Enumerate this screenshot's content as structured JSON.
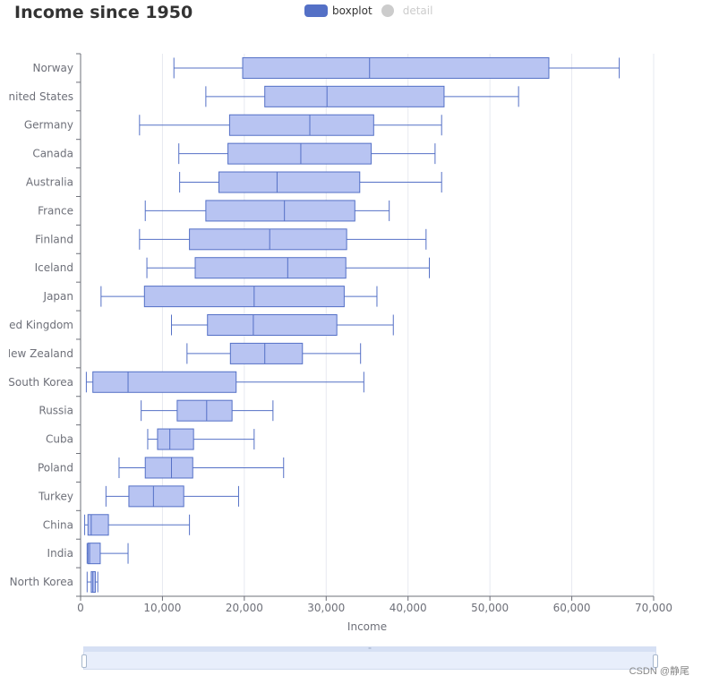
{
  "header": {
    "title": "Income since 1950"
  },
  "legend": {
    "items": [
      {
        "label": "boxplot",
        "color": "#5470c6",
        "active": true
      },
      {
        "label": "detail",
        "color": "#cccccc",
        "active": false
      }
    ]
  },
  "chart_data": {
    "type": "boxplot",
    "orientation": "horizontal",
    "xlabel": "Income",
    "xlim": [
      0,
      70000
    ],
    "xticks": [
      0,
      10000,
      20000,
      30000,
      40000,
      50000,
      60000,
      70000
    ],
    "xtick_labels": [
      "0",
      "10,000",
      "20,000",
      "30,000",
      "40,000",
      "50,000",
      "60,000",
      "70,000"
    ],
    "fill_color": "#b8c4f2",
    "stroke_color": "#5470c6",
    "categories": [
      "Norway",
      "United States",
      "Germany",
      "Canada",
      "Australia",
      "France",
      "Finland",
      "Iceland",
      "Japan",
      "United Kingdom",
      "New Zealand",
      "South Korea",
      "Russia",
      "Cuba",
      "Poland",
      "Turkey",
      "China",
      "India",
      "North Korea"
    ],
    "category_labels_visible": [
      "Norway",
      "Jnited States",
      "Germany",
      "Canada",
      "Australia",
      "France",
      "Finland",
      "Iceland",
      "Japan",
      "ed Kingdom",
      "New Zealand",
      "South Korea",
      "Russia",
      "Cuba",
      "Poland",
      "Turkey",
      "China",
      "India",
      "North Korea"
    ],
    "boxes": [
      {
        "name": "Norway",
        "min": 11400,
        "q1": 19800,
        "median": 35300,
        "q3": 57200,
        "max": 65800
      },
      {
        "name": "United States",
        "min": 15300,
        "q1": 22500,
        "median": 30100,
        "q3": 44400,
        "max": 53500
      },
      {
        "name": "Germany",
        "min": 7200,
        "q1": 18200,
        "median": 28000,
        "q3": 35800,
        "max": 44100
      },
      {
        "name": "Canada",
        "min": 12000,
        "q1": 18000,
        "median": 26900,
        "q3": 35500,
        "max": 43300
      },
      {
        "name": "Australia",
        "min": 12100,
        "q1": 16900,
        "median": 24000,
        "q3": 34100,
        "max": 44100
      },
      {
        "name": "France",
        "min": 7900,
        "q1": 15300,
        "median": 24900,
        "q3": 33500,
        "max": 37700
      },
      {
        "name": "Finland",
        "min": 7200,
        "q1": 13300,
        "median": 23100,
        "q3": 32500,
        "max": 42200
      },
      {
        "name": "Iceland",
        "min": 8100,
        "q1": 14000,
        "median": 25300,
        "q3": 32400,
        "max": 42600
      },
      {
        "name": "Japan",
        "min": 2500,
        "q1": 7800,
        "median": 21200,
        "q3": 32200,
        "max": 36200
      },
      {
        "name": "United Kingdom",
        "min": 11100,
        "q1": 15500,
        "median": 21100,
        "q3": 31300,
        "max": 38200
      },
      {
        "name": "New Zealand",
        "min": 13000,
        "q1": 18300,
        "median": 22500,
        "q3": 27100,
        "max": 34200
      },
      {
        "name": "South Korea",
        "min": 700,
        "q1": 1500,
        "median": 5800,
        "q3": 19000,
        "max": 34600
      },
      {
        "name": "Russia",
        "min": 7400,
        "q1": 11800,
        "median": 15400,
        "q3": 18500,
        "max": 23500
      },
      {
        "name": "Cuba",
        "min": 8200,
        "q1": 9400,
        "median": 10900,
        "q3": 13800,
        "max": 21200
      },
      {
        "name": "Poland",
        "min": 4700,
        "q1": 7900,
        "median": 11100,
        "q3": 13700,
        "max": 24800
      },
      {
        "name": "Turkey",
        "min": 3100,
        "q1": 5900,
        "median": 8900,
        "q3": 12600,
        "max": 19300
      },
      {
        "name": "China",
        "min": 500,
        "q1": 900,
        "median": 1300,
        "q3": 3400,
        "max": 13300
      },
      {
        "name": "India",
        "min": 800,
        "q1": 900,
        "median": 1100,
        "q3": 2400,
        "max": 5800
      },
      {
        "name": "North Korea",
        "min": 800,
        "q1": 1300,
        "median": 1500,
        "q3": 1800,
        "max": 2100
      }
    ]
  },
  "data_zoom": {
    "handle_grip": "=",
    "start_percent": 0,
    "end_percent": 100
  },
  "watermark": {
    "text": "CSDN @静尾"
  }
}
